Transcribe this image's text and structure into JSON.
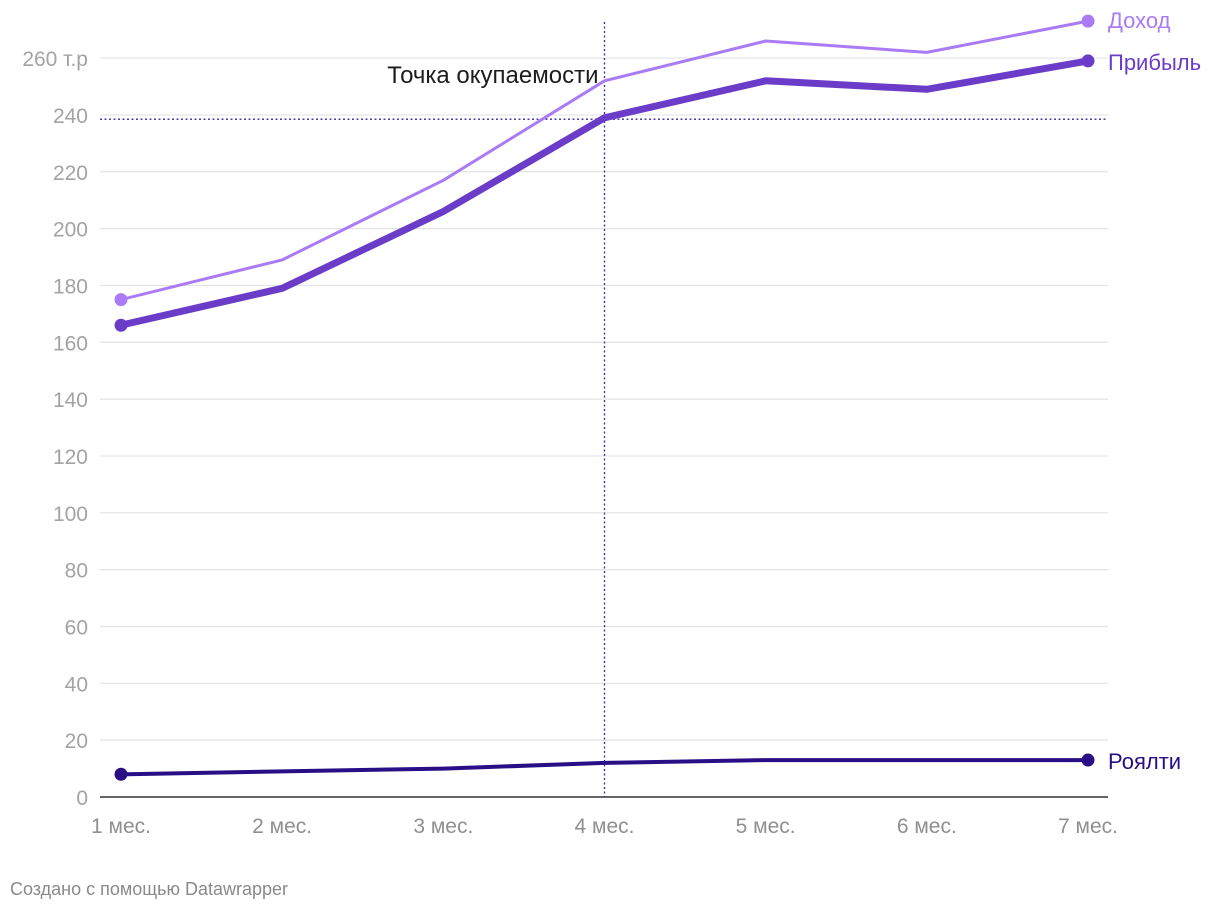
{
  "chart_data": {
    "type": "line",
    "categories": [
      "1 мес.",
      "2 мес.",
      "3 мес.",
      "4 мес.",
      "5 мес.",
      "6 мес.",
      "7 мес."
    ],
    "series": [
      {
        "name": "Доход",
        "values": [
          175,
          189,
          217,
          252,
          266,
          262,
          273
        ],
        "color": "#a97bf4",
        "style": "thin",
        "end_marker": true
      },
      {
        "name": "Прибыль",
        "values": [
          166,
          179,
          206,
          239,
          252,
          249,
          259
        ],
        "color": "#6a3cc8",
        "style": "thick",
        "end_marker": true
      },
      {
        "name": "Роялти",
        "values": [
          8,
          9,
          10,
          12,
          13,
          13,
          13
        ],
        "color": "#2a0e86",
        "style": "medium",
        "end_marker": true
      }
    ],
    "y_ticks": [
      0,
      20,
      40,
      60,
      80,
      100,
      120,
      140,
      160,
      180,
      200,
      220,
      240,
      260
    ],
    "y_tick_labels": [
      "0",
      "20",
      "40",
      "60",
      "80",
      "100",
      "120",
      "140",
      "160",
      "180",
      "200",
      "220",
      "240",
      "260 т.р"
    ],
    "ylim": [
      0,
      273
    ],
    "grid": true,
    "annotation": {
      "text": "Точка окупаемости",
      "x_category_index": 3,
      "y_value": 238.5,
      "color": "#3a2aa0"
    },
    "legend": "end-of-line labels"
  },
  "footer": {
    "credit": "Создано с помощью Datawrapper"
  }
}
